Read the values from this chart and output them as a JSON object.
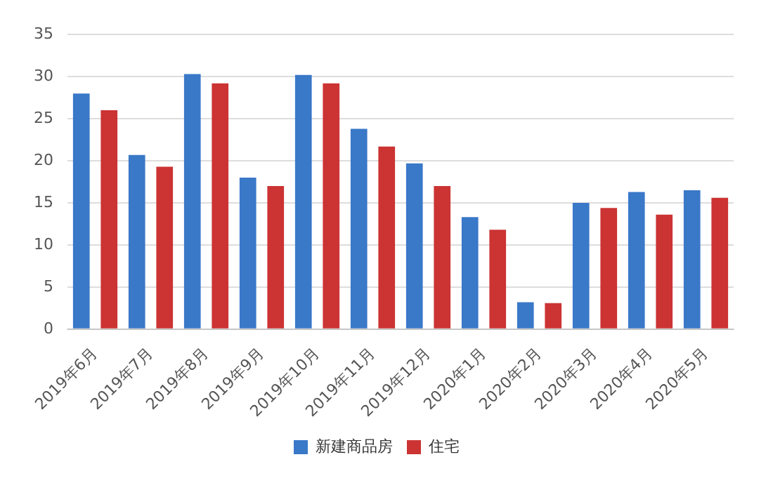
{
  "chart_data": {
    "type": "bar",
    "categories": [
      "2019年6月",
      "2019年7月",
      "2019年8月",
      "2019年9月",
      "2019年10月",
      "2019年11月",
      "2019年12月",
      "2020年1月",
      "2020年2月",
      "2020年3月",
      "2020年4月",
      "2020年5月"
    ],
    "series": [
      {
        "name": "新建商品房",
        "color": "#3a78c8",
        "values": [
          28,
          20.7,
          30.3,
          18,
          30.2,
          23.8,
          19.7,
          13.3,
          3.2,
          15,
          16.3,
          16.5
        ]
      },
      {
        "name": "住宅",
        "color": "#cc3333",
        "values": [
          26,
          19.3,
          29.2,
          17,
          29.2,
          21.7,
          17,
          11.8,
          3.1,
          14.4,
          13.6,
          15.6
        ]
      }
    ],
    "ylim": [
      0,
      35
    ],
    "yticks": [
      0,
      5,
      10,
      15,
      20,
      25,
      30,
      35
    ],
    "grid": "y",
    "legend": "bottom"
  }
}
